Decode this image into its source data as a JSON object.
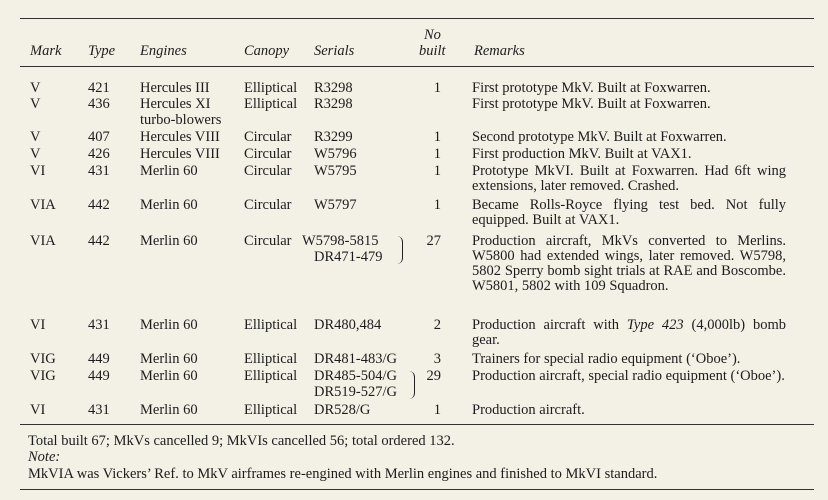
{
  "table": {
    "headers": {
      "mark": "Mark",
      "type": "Type",
      "engines": "Engines",
      "canopy": "Canopy",
      "serials": "Serials",
      "no_built_1": "No",
      "no_built_2": "built",
      "remarks": "Remarks"
    },
    "rows": [
      {
        "mark": "V",
        "type": "421",
        "engines": "Hercules III",
        "canopy": "Elliptical",
        "serials": "R3298",
        "built": "1",
        "remarks": "First prototype MkV. Built at Foxwarren."
      },
      {
        "mark": "V",
        "type": "436",
        "engines": "Hercules XI",
        "engines2": "turbo-blowers",
        "canopy": "Elliptical",
        "serials": "R3298",
        "built": "",
        "remarks": "First prototype MkV. Built at Foxwarren."
      },
      {
        "mark": "V",
        "type": "407",
        "engines": "Hercules VIII",
        "canopy": "Circular",
        "serials": "R3299",
        "built": "1",
        "remarks": "Second prototype MkV. Built at Foxwarren."
      },
      {
        "mark": "V",
        "type": "426",
        "engines": "Hercules VIII",
        "canopy": "Circular",
        "serials": "W5796",
        "built": "1",
        "remarks": "First production MkV. Built at VAX1."
      },
      {
        "mark": "VI",
        "type": "431",
        "engines": "Merlin 60",
        "canopy": "Circular",
        "serials": "W5795",
        "built": "1",
        "remarks": "Prototype MkVI. Built at Foxwarren. Had 6ft wing extensions, later removed. Crashed."
      },
      {
        "mark": "VIA",
        "type": "442",
        "engines": "Merlin 60",
        "canopy": "Circular",
        "serials": "W5797",
        "built": "1",
        "remarks": "Became Rolls-Royce flying test bed. Not fully equipped. Built at VAX1."
      },
      {
        "mark": "VIA",
        "type": "442",
        "engines": "Merlin 60",
        "canopy": "Circular",
        "serials": "W5798-5815",
        "serials2": "DR471-479",
        "built": "27",
        "remarks": "Production aircraft, MkVs converted to Merlins. W5800 had extended wings, later removed. W5798, 5802 Sperry bomb sight trials at RAE and Boscombe. W5801, 5802 with 109 Squadron."
      },
      {
        "mark": "VI",
        "type": "431",
        "engines": "Merlin 60",
        "canopy": "Elliptical",
        "serials": "DR480,484",
        "built": "2",
        "remarks_pre": "Production aircraft with ",
        "remarks_italic": "Type 423",
        "remarks_post": " (4,000lb) bomb gear."
      },
      {
        "mark": "VIG",
        "type": "449",
        "engines": "Merlin 60",
        "canopy": "Elliptical",
        "serials": "DR481-483/G",
        "built": "3",
        "remarks": "Trainers for special radio equipment (‘Oboe’)."
      },
      {
        "mark": "VIG",
        "type": "449",
        "engines": "Merlin 60",
        "canopy": "Elliptical",
        "serials": "DR485-504/G",
        "serials2": "DR519-527/G",
        "built": "29",
        "remarks": "Production aircraft, special radio equipment (‘Oboe’)."
      },
      {
        "mark": "VI",
        "type": "431",
        "engines": "Merlin 60",
        "canopy": "Elliptical",
        "serials": "DR528/G",
        "built": "1",
        "remarks": "Production aircraft."
      }
    ]
  },
  "footer": {
    "totals": "Total built 67; MkVs cancelled 9; MkVIs cancelled 56; total ordered 132.",
    "note_label": "Note:",
    "note": "MkVIA was Vickers’ Ref. to MkV airframes re-engined with Merlin engines and finished to MkVI standard."
  }
}
